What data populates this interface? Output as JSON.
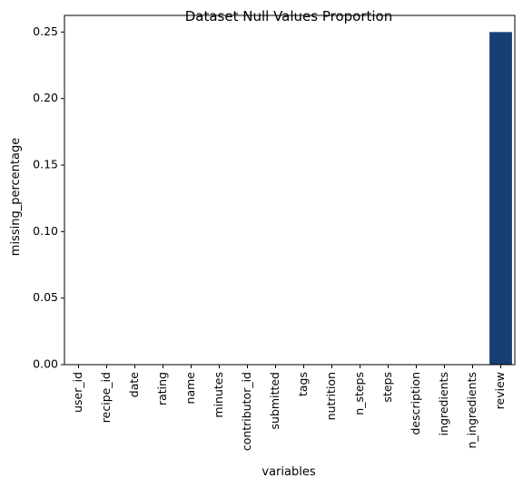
{
  "chart_data": {
    "type": "bar",
    "title": "Dataset Null Values Proportion",
    "xlabel": "variables",
    "ylabel": "missing_percentage",
    "categories": [
      "user_id",
      "recipe_id",
      "date",
      "rating",
      "name",
      "minutes",
      "contributor_id",
      "submitted",
      "tags",
      "nutrition",
      "n_steps",
      "steps",
      "description",
      "ingredients",
      "n_ingredients",
      "review"
    ],
    "values": [
      0,
      0,
      0,
      0,
      0,
      0,
      0,
      0,
      0,
      0,
      0,
      0,
      0,
      0,
      0,
      0.25
    ],
    "ylim": [
      0,
      0.2625
    ],
    "yticks": [
      "0.00",
      "0.05",
      "0.10",
      "0.15",
      "0.20",
      "0.25"
    ],
    "grid": false,
    "bar_color": "#173f73"
  }
}
